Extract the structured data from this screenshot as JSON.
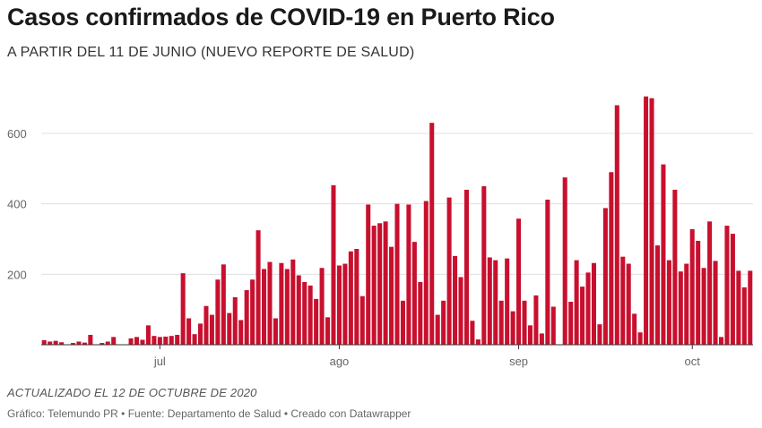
{
  "header": {
    "title": "Casos confirmados de COVID-19 en Puerto Rico",
    "subtitle": "A PARTIR DEL 11 DE JUNIO (NUEVO REPORTE DE SALUD)"
  },
  "footer": {
    "updated": "ACTUALIZADO EL 12 DE OCTUBRE DE 2020",
    "credits": "Gráfico: Telemundo PR • Fuente: Departamento de Salud • Creado con Datawrapper"
  },
  "colors": {
    "bar": "#c8102e",
    "grid": "#e0e0e0",
    "axis": "#333333"
  },
  "chart_data": {
    "type": "bar",
    "title": "Casos confirmados de COVID-19 en Puerto Rico",
    "subtitle": "A PARTIR DEL 11 DE JUNIO (NUEVO REPORTE DE SALUD)",
    "xlabel": "",
    "ylabel": "",
    "ylim": [
      0,
      700
    ],
    "yticks": [
      200,
      400,
      600
    ],
    "x_start": "2020-06-11",
    "x_end": "2020-10-12",
    "xticks": [
      {
        "label": "jul",
        "date": "2020-07-01"
      },
      {
        "label": "ago",
        "date": "2020-08-01"
      },
      {
        "label": "sep",
        "date": "2020-09-01"
      },
      {
        "label": "oct",
        "date": "2020-10-01"
      }
    ],
    "grid": true,
    "values": [
      13,
      9,
      11,
      7,
      0,
      5,
      9,
      6,
      28,
      0,
      5,
      9,
      22,
      0,
      0,
      18,
      22,
      14,
      55,
      25,
      22,
      23,
      25,
      28,
      203,
      75,
      30,
      60,
      110,
      85,
      185,
      228,
      90,
      135,
      70,
      155,
      185,
      325,
      215,
      235,
      75,
      232,
      215,
      242,
      197,
      178,
      168,
      130,
      218,
      78,
      453,
      225,
      230,
      265,
      272,
      138,
      398,
      338,
      345,
      350,
      278,
      400,
      125,
      398,
      292,
      178,
      408,
      630,
      85,
      125,
      418,
      252,
      192,
      440,
      68,
      15,
      450,
      248,
      240,
      125,
      245,
      95,
      358,
      125,
      55,
      140,
      32,
      412,
      108,
      0,
      475,
      122,
      240,
      165,
      205,
      232,
      58,
      388,
      490,
      680,
      250,
      230,
      88,
      35,
      705,
      700,
      282,
      512,
      240,
      440,
      208,
      230,
      328,
      295,
      218,
      350,
      238,
      22,
      338,
      315,
      210,
      163,
      210
    ]
  }
}
